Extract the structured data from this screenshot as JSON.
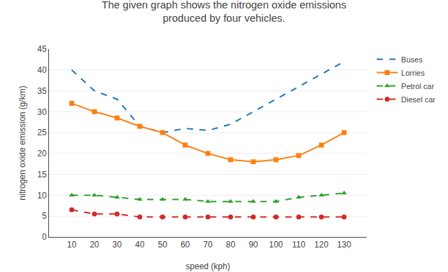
{
  "chart_data": {
    "type": "line",
    "title": "The given graph shows the nitrogen oxide emissions\nproduced by four vehicles.",
    "x_label": "speed (kph)",
    "y_label": "nitrogen oxide emission (g/km)",
    "x": [
      10,
      20,
      30,
      40,
      50,
      60,
      70,
      80,
      90,
      100,
      110,
      120,
      130
    ],
    "series": [
      {
        "name": "Buses",
        "values": [
          40,
          35,
          33,
          26.5,
          25,
          26,
          25.5,
          27,
          30,
          33,
          36,
          39,
          42
        ],
        "marker": "none",
        "line_style": "dash"
      },
      {
        "name": "Lorries",
        "values": [
          32,
          30,
          28.5,
          26.5,
          25,
          22,
          20,
          18.5,
          18,
          18.5,
          19.5,
          22,
          25
        ],
        "marker": "square",
        "line_style": "solid"
      },
      {
        "name": "Petrol car",
        "values": [
          10,
          10,
          9.5,
          9,
          9,
          9,
          8.5,
          8.5,
          8.5,
          8.5,
          9.5,
          10,
          10.5
        ],
        "marker": "triangle-up",
        "line_style": "dash"
      },
      {
        "name": "Diesel car",
        "values": [
          6.5,
          5.5,
          5.5,
          4.8,
          4.8,
          4.8,
          4.8,
          4.8,
          4.8,
          4.8,
          4.8,
          4.8,
          4.8
        ],
        "marker": "circle",
        "line_style": "dash"
      }
    ],
    "xlim": [
      0,
      140
    ],
    "xticks": [
      10,
      20,
      30,
      40,
      50,
      60,
      70,
      80,
      90,
      100,
      110,
      120,
      130
    ],
    "ylim": [
      0,
      45
    ],
    "yticks": [
      0,
      5,
      10,
      15,
      20,
      25,
      30,
      35,
      40,
      45
    ],
    "grid": "y",
    "legend": "right"
  }
}
